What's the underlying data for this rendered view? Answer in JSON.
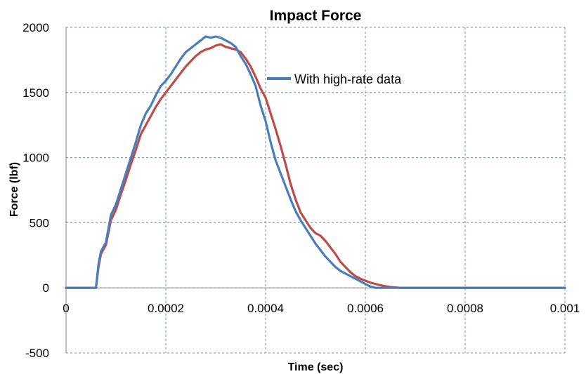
{
  "chart_data": {
    "type": "line",
    "title": "Impact Force",
    "xlabel": "Time (sec)",
    "ylabel": "Force (lbf)",
    "xlim": [
      0,
      0.001
    ],
    "ylim": [
      -500,
      2000
    ],
    "x_ticks": [
      0,
      0.0002,
      0.0004,
      0.0006,
      0.0008,
      0.001
    ],
    "x_tick_labels": [
      "0",
      "0.0002",
      "0.0004",
      "0.0006",
      "0.0008",
      "0.001"
    ],
    "y_ticks": [
      -500,
      0,
      500,
      1000,
      1500,
      2000
    ],
    "y_tick_labels": [
      "-500",
      "0",
      "500",
      "1000",
      "1500",
      "2000"
    ],
    "grid": true,
    "legend_position": "top-right",
    "series": [
      {
        "name": "With high-rate data",
        "color": "#4a7ebb",
        "x": [
          0,
          6e-05,
          6.5e-05,
          7e-05,
          8e-05,
          9e-05,
          0.0001,
          0.00011,
          0.00012,
          0.00013,
          0.00014,
          0.00015,
          0.00016,
          0.00017,
          0.00018,
          0.00019,
          0.0002,
          0.00021,
          0.00022,
          0.00023,
          0.00024,
          0.00025,
          0.00026,
          0.00027,
          0.00028,
          0.00029,
          0.0003,
          0.00031,
          0.00032,
          0.00033,
          0.00034,
          0.00035,
          0.00036,
          0.00037,
          0.00038,
          0.00039,
          0.0004,
          0.00041,
          0.00042,
          0.00043,
          0.00044,
          0.00045,
          0.00046,
          0.00047,
          0.00048,
          0.00049,
          0.0005,
          0.00051,
          0.00052,
          0.00053,
          0.00054,
          0.00055,
          0.00056,
          0.00057,
          0.00058,
          0.00059,
          0.0006,
          0.00061,
          0.00062,
          0.00063,
          0.0007,
          0.0008,
          0.0009,
          0.001
        ],
        "y": [
          0,
          0,
          180,
          280,
          350,
          560,
          640,
          760,
          880,
          1000,
          1120,
          1250,
          1340,
          1400,
          1480,
          1550,
          1590,
          1640,
          1700,
          1760,
          1810,
          1840,
          1870,
          1900,
          1930,
          1920,
          1930,
          1920,
          1900,
          1880,
          1850,
          1780,
          1720,
          1640,
          1550,
          1400,
          1280,
          1120,
          980,
          880,
          780,
          680,
          590,
          520,
          460,
          400,
          340,
          290,
          240,
          200,
          160,
          130,
          110,
          90,
          70,
          50,
          30,
          10,
          0,
          0,
          0,
          0,
          0,
          0
        ]
      },
      {
        "name": "",
        "color": "#be4b48",
        "x": [
          0,
          6e-05,
          6.5e-05,
          7e-05,
          8e-05,
          9e-05,
          0.0001,
          0.00011,
          0.00012,
          0.00013,
          0.00014,
          0.00015,
          0.00016,
          0.00017,
          0.00018,
          0.00019,
          0.0002,
          0.00021,
          0.00022,
          0.00023,
          0.00024,
          0.00025,
          0.00026,
          0.00027,
          0.00028,
          0.00029,
          0.0003,
          0.00031,
          0.00032,
          0.00033,
          0.00034,
          0.00035,
          0.00036,
          0.00037,
          0.00038,
          0.00039,
          0.0004,
          0.00041,
          0.00042,
          0.00043,
          0.00044,
          0.00045,
          0.00046,
          0.00047,
          0.00048,
          0.00049,
          0.0005,
          0.00051,
          0.00052,
          0.00053,
          0.00054,
          0.00055,
          0.00056,
          0.00057,
          0.00058,
          0.00059,
          0.0006,
          0.00061,
          0.00062,
          0.00063,
          0.00064,
          0.00065,
          0.00066,
          0.00067,
          0.0007,
          0.0008,
          0.0009,
          0.001
        ],
        "y": [
          0,
          0,
          160,
          260,
          330,
          520,
          600,
          720,
          830,
          950,
          1060,
          1180,
          1250,
          1320,
          1390,
          1450,
          1500,
          1550,
          1600,
          1650,
          1700,
          1740,
          1780,
          1810,
          1830,
          1840,
          1860,
          1870,
          1850,
          1840,
          1830,
          1810,
          1760,
          1700,
          1620,
          1530,
          1460,
          1340,
          1220,
          1090,
          950,
          800,
          680,
          580,
          520,
          460,
          420,
          400,
          360,
          310,
          260,
          200,
          160,
          120,
          90,
          70,
          55,
          40,
          30,
          20,
          12,
          6,
          3,
          0,
          0,
          0,
          0,
          0
        ]
      }
    ]
  }
}
